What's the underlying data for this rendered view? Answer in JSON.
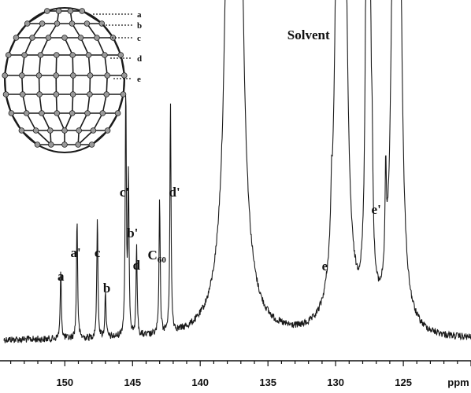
{
  "chart_data": {
    "type": "line",
    "title": "",
    "xlabel": "ppm",
    "ylabel": "",
    "x_reversed": true,
    "xlim": [
      154.5,
      120.0
    ],
    "ylim": [
      0,
      100
    ],
    "x_ticks": [
      150,
      145,
      140,
      135,
      130,
      125
    ],
    "tick_labels": [
      "150",
      "145",
      "140",
      "135",
      "130",
      "125"
    ],
    "baseline": 4,
    "peaks": [
      {
        "label": "a",
        "x": 150.3,
        "height": 14,
        "width": 0.05
      },
      {
        "label": "a'",
        "x": 149.1,
        "height": 22,
        "width": 0.05
      },
      {
        "label": "c",
        "x": 147.6,
        "height": 22,
        "width": 0.05
      },
      {
        "label": "b",
        "x": 147.0,
        "height": 11,
        "width": 0.05
      },
      {
        "label": "c'",
        "x": 145.5,
        "height": 40,
        "width": 0.05
      },
      {
        "label": "b'",
        "x": 145.3,
        "height": 27,
        "width": 0.05
      },
      {
        "label": "d",
        "x": 144.7,
        "height": 17,
        "width": 0.05
      },
      {
        "label": "C60",
        "x": 143.0,
        "height": 24,
        "width": 0.05
      },
      {
        "label": "d'",
        "x": 142.2,
        "height": 38,
        "width": 0.05
      },
      {
        "label": "",
        "x": 137.5,
        "height": 520,
        "width": 0.22
      },
      {
        "label": "e",
        "x": 130.3,
        "height": 10,
        "width": 0.06
      },
      {
        "label": "",
        "x": 129.6,
        "height": 520,
        "width": 0.14
      },
      {
        "label": "",
        "x": 127.6,
        "height": 520,
        "width": 0.06
      },
      {
        "label": "e'",
        "x": 127.3,
        "height": 16,
        "width": 0.06
      },
      {
        "label": "",
        "x": 126.3,
        "height": 18,
        "width": 0.06
      },
      {
        "label": "",
        "x": 125.5,
        "height": 520,
        "width": 0.12
      }
    ],
    "annotations": [
      {
        "text": "a",
        "x": 150.3
      },
      {
        "text": "a'",
        "x": 149.2
      },
      {
        "text": "c",
        "x": 147.6
      },
      {
        "text": "b",
        "x": 146.9
      },
      {
        "text": "c'",
        "x": 145.6
      },
      {
        "text": "b'",
        "x": 145.0
      },
      {
        "text": "d",
        "x": 144.7
      },
      {
        "text": "C60",
        "x": 143.2
      },
      {
        "text": "d'",
        "x": 141.9
      },
      {
        "text": "e",
        "x": 130.8
      },
      {
        "text": "e'",
        "x": 127.0
      },
      {
        "text": "Solvent",
        "x": 132.0
      }
    ],
    "grid": false,
    "legend": "none"
  },
  "inset": {
    "labels": [
      "a",
      "b",
      "c",
      "d",
      "e"
    ]
  },
  "colors": {
    "line": "#1a1a1a",
    "background": "#ffffff"
  }
}
